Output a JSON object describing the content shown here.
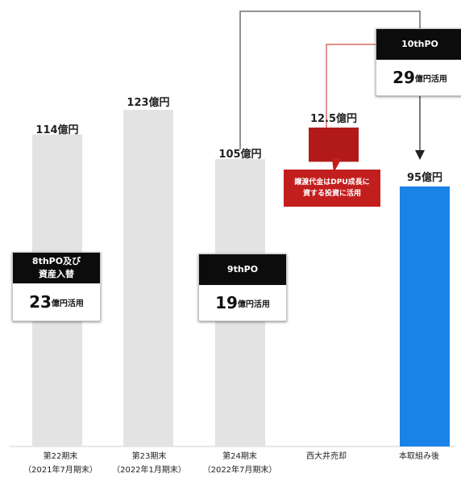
{
  "chart_data": {
    "type": "bar",
    "categories": [
      {
        "line1": "第22期末",
        "line2": "（2021年7月期末）"
      },
      {
        "line1": "第23期末",
        "line2": "（2022年1月期末）"
      },
      {
        "line1": "第24期末",
        "line2": "（2022年7月期末）"
      },
      {
        "line1": "西大井売却",
        "line2": ""
      },
      {
        "line1": "本取組み後",
        "line2": ""
      }
    ],
    "values": [
      114,
      123,
      105,
      12.5,
      95
    ],
    "value_labels": [
      "114億円",
      "123億円",
      "105億円",
      "12.5億円",
      "95億円"
    ],
    "colors": [
      "#e3e3e3",
      "#e3e3e3",
      "#e3e3e3",
      "#b21a1a",
      "#1a83e8"
    ],
    "ylim": [
      0,
      135
    ],
    "callouts": [
      {
        "head": "8thPO及び\n資産入替",
        "amount": "23",
        "unit": "億円活用"
      },
      {
        "head": "9thPO",
        "amount": "19",
        "unit": "億円活用"
      },
      {
        "head": "10thPO",
        "amount": "29",
        "unit": "億円活用"
      }
    ],
    "note": "譲渡代金はDPU成長に\n資する投資に活用"
  }
}
